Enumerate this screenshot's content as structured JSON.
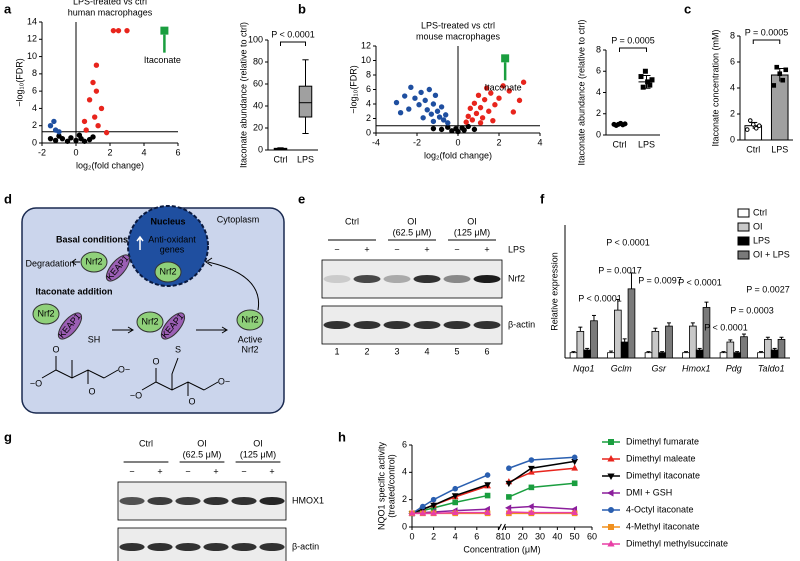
{
  "panel_labels": [
    "a",
    "b",
    "c",
    "d",
    "e",
    "f",
    "g",
    "h"
  ],
  "chart_data": [
    {
      "type": "scatter",
      "title": "LPS-treated vs ctrl",
      "subtitle": "human macrophages",
      "xlabel": "log₂(fold change)",
      "ylabel": "−log₁₀(FDR)",
      "xlim": [
        -2,
        6
      ],
      "ylim": [
        0,
        14
      ],
      "xticks": [
        -2,
        0,
        2,
        4,
        6
      ],
      "yticks": [
        0,
        2,
        4,
        6,
        8,
        10,
        12,
        14
      ],
      "vline": 0,
      "hline": 1.3,
      "series": [
        {
          "color": "#000000",
          "marker": "circle",
          "x": [
            -1.5,
            -1.2,
            -0.8,
            -0.5,
            -0.3,
            0,
            0.3,
            0.5,
            0.8,
            1,
            -1,
            0.2
          ],
          "y": [
            0.5,
            0.3,
            0.5,
            0.2,
            0.6,
            0.3,
            0.5,
            0.2,
            0.4,
            0.7,
            0.8,
            0.9
          ]
        },
        {
          "color": "#1f4fa0",
          "marker": "circle",
          "x": [
            -1.3,
            -1.5,
            -1.2,
            -1
          ],
          "y": [
            2.5,
            2,
            1.5,
            1.3
          ]
        },
        {
          "color": "#e8251d",
          "marker": "circle",
          "x": [
            2.2,
            2.5,
            3,
            1.2,
            1,
            1.2,
            0.8,
            1.5,
            1.1,
            0.5,
            1.3,
            0.6,
            1.8
          ],
          "y": [
            13,
            13,
            13,
            9,
            7,
            6,
            5,
            4,
            3,
            2.5,
            2,
            1.5,
            1.2
          ]
        },
        {
          "color": "#1a9e3f",
          "marker": "square",
          "x": [
            5.2
          ],
          "y": [
            13
          ]
        }
      ],
      "annotation": {
        "text": "Itaconate",
        "series": 3
      }
    },
    {
      "type": "box",
      "ylabel": "Itaconate abundance (relative to ctrl)",
      "categories": [
        "Ctrl",
        "LPS"
      ],
      "ylim": [
        0,
        100
      ],
      "yticks": [
        0,
        20,
        40,
        60,
        80,
        100
      ],
      "color": "#a0a0a0",
      "boxes": [
        {
          "min": 0,
          "q1": 0.5,
          "median": 1,
          "q3": 1.5,
          "max": 2
        },
        {
          "min": 15,
          "q1": 30,
          "median": 43,
          "q3": 58,
          "max": 82
        }
      ],
      "annotation": {
        "text": "P < 0.0001"
      }
    },
    {
      "type": "scatter",
      "title": "LPS-treated vs ctrl",
      "subtitle": "mouse macrophages",
      "xlabel": "log₂(fold change)",
      "ylabel": "−log₁₀(FDR)",
      "xlim": [
        -4,
        4
      ],
      "ylim": [
        0,
        12
      ],
      "xticks": [
        -4,
        -2,
        0,
        2,
        4
      ],
      "yticks": [
        0,
        2,
        4,
        6,
        8,
        10,
        12
      ],
      "vline": 0,
      "hline": 1,
      "series": [
        {
          "color": "#000000",
          "marker": "circle",
          "x": [
            -0.8,
            -0.5,
            -0.3,
            -0.1,
            0,
            0.2,
            0.3,
            0.5,
            -1.2,
            0.8
          ],
          "y": [
            0.5,
            0.8,
            0.3,
            0.6,
            0.2,
            0.7,
            0.4,
            0.9,
            0.6,
            0.5
          ]
        },
        {
          "color": "#1f4fa0",
          "marker": "circle",
          "x": [
            -3,
            -2.6,
            -2.3,
            -2.1,
            -1.9,
            -1.8,
            -1.6,
            -1.5,
            -1.4,
            -1.3,
            -1.2,
            -1.1,
            -1,
            -0.9,
            -0.8,
            -0.7,
            -0.6,
            -2.4,
            -2.8,
            -1.7,
            -1.2,
            -0.5
          ],
          "y": [
            4.2,
            5.1,
            6.3,
            4.8,
            3.9,
            5.6,
            4.5,
            3.2,
            6,
            2.6,
            4,
            5.2,
            3,
            2.2,
            3.6,
            1.8,
            2.5,
            3.3,
            2.8,
            2.1,
            1.6,
            1.4
          ]
        },
        {
          "color": "#e8251d",
          "marker": "circle",
          "x": [
            0.4,
            0.5,
            0.6,
            0.7,
            0.8,
            0.9,
            1,
            1.1,
            1.2,
            1.3,
            1.4,
            1.5,
            1.6,
            1.8,
            2,
            2.2,
            2.5,
            3,
            3.2,
            1.7,
            1.1,
            2.7
          ],
          "y": [
            1.5,
            2.3,
            3.4,
            1.8,
            4.1,
            2.7,
            5.2,
            3.5,
            2.1,
            4.6,
            6.2,
            3,
            5.5,
            3.9,
            4.8,
            6.5,
            5.8,
            4.5,
            7,
            1.7,
            1.4,
            2.9
          ]
        },
        {
          "color": "#1a9e3f",
          "marker": "square",
          "x": [
            2.3
          ],
          "y": [
            10.3
          ]
        }
      ],
      "annotation": {
        "text": "Itaconate",
        "series": 3
      }
    },
    {
      "type": "dot",
      "ylabel": "Itaconate abundance (relative to ctrl)",
      "categories": [
        "Ctrl",
        "LPS"
      ],
      "ylim": [
        0,
        8
      ],
      "yticks": [
        0,
        2,
        4,
        6,
        8
      ],
      "points": [
        [
          1,
          0.9,
          1,
          1.1,
          0.95,
          1.05
        ],
        [
          5.5,
          4.5,
          6,
          5,
          4.7,
          5.2
        ]
      ],
      "means": [
        1,
        5
      ],
      "errors": [
        0.1,
        0.6
      ],
      "annotation": {
        "text": "P = 0.0005"
      }
    },
    {
      "type": "bar",
      "ylabel": "Itaconate concentration (mM)",
      "categories": [
        "Ctrl",
        "LPS"
      ],
      "ylim": [
        0,
        8
      ],
      "yticks": [
        0,
        2,
        4,
        6,
        8
      ],
      "colors": [
        "#ffffff",
        "#a0a0a0"
      ],
      "values": [
        1.1,
        5
      ],
      "errors": [
        0.25,
        0.5
      ],
      "points": [
        [
          0.8,
          1.5,
          1.2,
          0.9,
          1.1
        ],
        [
          4.2,
          5.6,
          5.1,
          4.6,
          5.4
        ]
      ],
      "annotation": {
        "text": "P = 0.0005"
      }
    },
    {
      "type": "bar",
      "ylabel": "Relative expression",
      "ylim": [
        0,
        25
      ],
      "categories": [
        "Nqo1",
        "Gclm",
        "Gsr",
        "Hmox1",
        "Pdg",
        "Taldo1"
      ],
      "series": [
        {
          "name": "Ctrl",
          "color": "#ffffff",
          "values": [
            1,
            1,
            1,
            1,
            1,
            1
          ],
          "errors": [
            0.2,
            0.3,
            0.2,
            0.2,
            0.2,
            0.2
          ]
        },
        {
          "name": "OI",
          "color": "#c8c8c8",
          "values": [
            5,
            9,
            5,
            6,
            3,
            3.5
          ],
          "errors": [
            0.8,
            2,
            0.6,
            0.6,
            0.4,
            0.4
          ]
        },
        {
          "name": "LPS",
          "color": "#000000",
          "values": [
            1.5,
            3,
            1,
            1.5,
            1,
            1.5
          ],
          "errors": [
            0.3,
            0.6,
            0.2,
            0.3,
            0.2,
            0.3
          ]
        },
        {
          "name": "OI + LPS",
          "color": "#7a7a7a",
          "values": [
            7,
            13,
            6,
            9.5,
            4,
            3.5
          ],
          "errors": [
            1,
            3,
            0.6,
            1,
            0.5,
            0.4
          ]
        }
      ],
      "annotations": [
        {
          "text": "P < 0.0001"
        },
        {
          "text": "P = 0.0017"
        },
        {
          "text": "P < 0.0001"
        },
        {
          "text": "P = 0.0097"
        },
        {
          "text": "P < 0.0001"
        },
        {
          "text": "P < 0.0001"
        },
        {
          "text": "P = 0.0003"
        },
        {
          "text": "P = 0.0027"
        }
      ]
    },
    {
      "type": "line",
      "ylabel": "NQO1 specific activity",
      "ylabel2": "(treated/control)",
      "xlabel": "Concentration (μM)",
      "xlim": [
        0,
        60
      ],
      "axis_break": [
        8,
        10
      ],
      "ylim": [
        0,
        6
      ],
      "xticks": [
        0,
        2,
        4,
        6,
        8,
        10,
        20,
        30,
        40,
        50,
        60
      ],
      "yticks": [
        0,
        2,
        4,
        6
      ],
      "x": [
        0,
        1,
        2,
        4,
        7,
        12,
        25,
        50
      ],
      "series": [
        {
          "name": "Dimethyl fumarate",
          "color": "#1a9e3f",
          "marker": "square",
          "values": [
            1,
            1.2,
            1.4,
            1.8,
            2.3,
            2.2,
            2.9,
            3.2
          ]
        },
        {
          "name": "Dimethyl maleate",
          "color": "#e8251d",
          "marker": "triangle",
          "values": [
            1,
            1.3,
            1.6,
            2.2,
            3,
            3.3,
            4,
            4.3
          ]
        },
        {
          "name": "Dimethyl itaconate",
          "color": "#000000",
          "marker": "triangle-down",
          "values": [
            1,
            1.3,
            1.6,
            2.3,
            3.1,
            3.2,
            4.3,
            4.8
          ]
        },
        {
          "name": "DMI + GSH",
          "color": "#8b1e9c",
          "marker": "triangle-left",
          "values": [
            1,
            1.05,
            1.1,
            1.2,
            1.3,
            1.4,
            1.5,
            1.3
          ]
        },
        {
          "name": "4-Octyl itaconate",
          "color": "#2a5fb0",
          "marker": "circle",
          "values": [
            1,
            1.5,
            2,
            2.8,
            3.8,
            4.3,
            4.9,
            5.1
          ]
        },
        {
          "name": "4-Methyl itaconate",
          "color": "#f0901e",
          "marker": "square",
          "values": [
            1,
            1,
            1,
            1,
            1,
            1,
            1,
            1
          ]
        },
        {
          "name": "Dimethyl methylsuccinate",
          "color": "#e83fa5",
          "marker": "triangle",
          "values": [
            1,
            1,
            1,
            1.05,
            1.05,
            1.1,
            1.05,
            1.05
          ]
        }
      ]
    }
  ],
  "diagram": {
    "cytoplasm": "Cytoplasm",
    "nucleus": "Nucleus",
    "genes": [
      "Anti-oxidant",
      "genes"
    ],
    "basal": "Basal conditions",
    "degradation": "Degradation",
    "itaconate_addition": "Itaconate addition",
    "nrf2_labels": [
      "Nrf2",
      "Nrf2",
      "Nrf2",
      "Nrf2",
      "Nrf2"
    ],
    "keap1_labels": [
      "KEAP1",
      "KEAP1",
      "KEAP1"
    ],
    "thiols": [
      "SH",
      "S"
    ],
    "active": [
      "Active",
      "Nrf2"
    ],
    "chem_labels": [
      "−O",
      "O",
      "O",
      "O−",
      "−O",
      "O",
      "O",
      "O−"
    ]
  },
  "blot_e": {
    "groups": [
      {
        "label": "Ctrl"
      },
      {
        "label": "OI",
        "dose": "(62.5 μM)"
      },
      {
        "label": "OI",
        "dose": "(125 μM)"
      }
    ],
    "treatment": "LPS",
    "signs": [
      "−",
      "+",
      "−",
      "+",
      "−",
      "+"
    ],
    "proteins": [
      "Nrf2",
      "β-actin"
    ],
    "lanes": [
      "1",
      "2",
      "3",
      "4",
      "5",
      "6"
    ]
  },
  "blot_g": {
    "groups": [
      {
        "label": "Ctrl"
      },
      {
        "label": "OI",
        "dose": "(62.5 μM)"
      },
      {
        "label": "OI",
        "dose": "(125 μM)"
      }
    ],
    "signs": [
      "−",
      "+",
      "−",
      "+",
      "−",
      "+"
    ],
    "proteins": [
      "HMOX1",
      "β-actin"
    ]
  }
}
